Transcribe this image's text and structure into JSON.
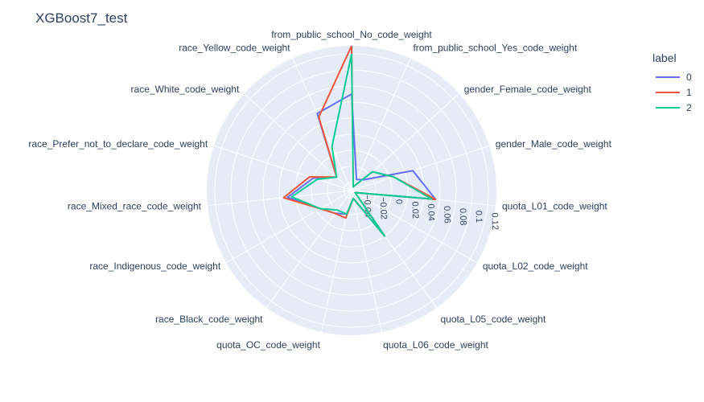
{
  "chart_data": {
    "type": "radar",
    "title": "XGBoost7_test",
    "legend_title": "label",
    "legend_placement": "top-right",
    "radial_axis": {
      "range": [
        -0.05,
        0.13
      ],
      "tick_labels": [
        "−0.04",
        "−0.02",
        "0",
        "0.02",
        "0.04",
        "0.06",
        "0.08",
        "0.1",
        "0.12"
      ],
      "tick_values": [
        -0.04,
        -0.02,
        0,
        0.02,
        0.04,
        0.06,
        0.08,
        0.1,
        0.12
      ]
    },
    "grid": true,
    "categories": [
      "from_public_school_No_code_weight",
      "from_public_school_Yes_code_weight",
      "gender_Female_code_weight",
      "gender_Male_code_weight",
      "quota_L01_code_weight",
      "quota_L02_code_weight",
      "quota_L05_code_weight",
      "quota_L06_code_weight",
      "quota_OC_code_weight",
      "race_Black_code_weight",
      "race_Indigenous_code_weight",
      "race_Mixed_race_code_weight",
      "race_Prefer_not_to_declare_code_weight",
      "race_White_code_weight",
      "race_Yellow_code_weight"
    ],
    "series": [
      {
        "name": "0",
        "color": "#636efa",
        "values": [
          0.07,
          -0.035,
          -0.03,
          0.03,
          0.055,
          -0.045,
          0.02,
          -0.04,
          -0.02,
          -0.015,
          -0.005,
          0.03,
          0.0,
          -0.025,
          0.055
        ]
      },
      {
        "name": "1",
        "color": "#ef553b",
        "values": [
          0.13,
          -0.045,
          -0.015,
          0.005,
          0.055,
          -0.045,
          0.02,
          -0.04,
          -0.015,
          -0.015,
          -0.005,
          0.035,
          0.005,
          -0.025,
          0.05
        ]
      },
      {
        "name": "2",
        "color": "#00cc96",
        "values": [
          0.12,
          -0.045,
          -0.015,
          0.005,
          0.05,
          -0.045,
          0.02,
          -0.04,
          -0.02,
          -0.02,
          -0.005,
          0.025,
          -0.005,
          -0.025,
          0.01
        ]
      }
    ]
  }
}
